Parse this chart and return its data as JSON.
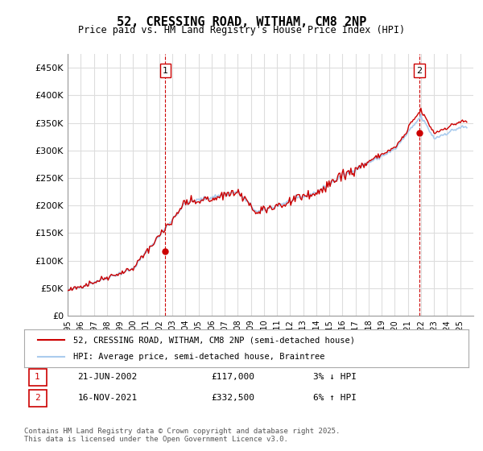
{
  "title": "52, CRESSING ROAD, WITHAM, CM8 2NP",
  "subtitle": "Price paid vs. HM Land Registry's House Price Index (HPI)",
  "ylabel_ticks": [
    "£0",
    "£50K",
    "£100K",
    "£150K",
    "£200K",
    "£250K",
    "£300K",
    "£350K",
    "£400K",
    "£450K"
  ],
  "ylabel_values": [
    0,
    50000,
    100000,
    150000,
    200000,
    250000,
    300000,
    350000,
    400000,
    450000
  ],
  "ylim": [
    0,
    475000
  ],
  "year_start": 1995,
  "year_end": 2025,
  "sale1_year": 2002.47,
  "sale1_price": 117000,
  "sale1_label": "1",
  "sale1_date": "21-JUN-2002",
  "sale1_pct": "3%",
  "sale1_dir": "↓",
  "sale2_year": 2021.88,
  "sale2_price": 332500,
  "sale2_label": "2",
  "sale2_date": "16-NOV-2021",
  "sale2_pct": "6%",
  "sale2_dir": "↑",
  "legend_label1": "52, CRESSING ROAD, WITHAM, CM8 2NP (semi-detached house)",
  "legend_label2": "HPI: Average price, semi-detached house, Braintree",
  "footer": "Contains HM Land Registry data © Crown copyright and database right 2025.\nThis data is licensed under the Open Government Licence v3.0.",
  "line_color_price": "#cc0000",
  "line_color_hpi": "#aaccee",
  "grid_color": "#dddddd",
  "background_color": "#ffffff",
  "sale_marker_color": "#cc0000",
  "dashed_line_color": "#cc0000"
}
